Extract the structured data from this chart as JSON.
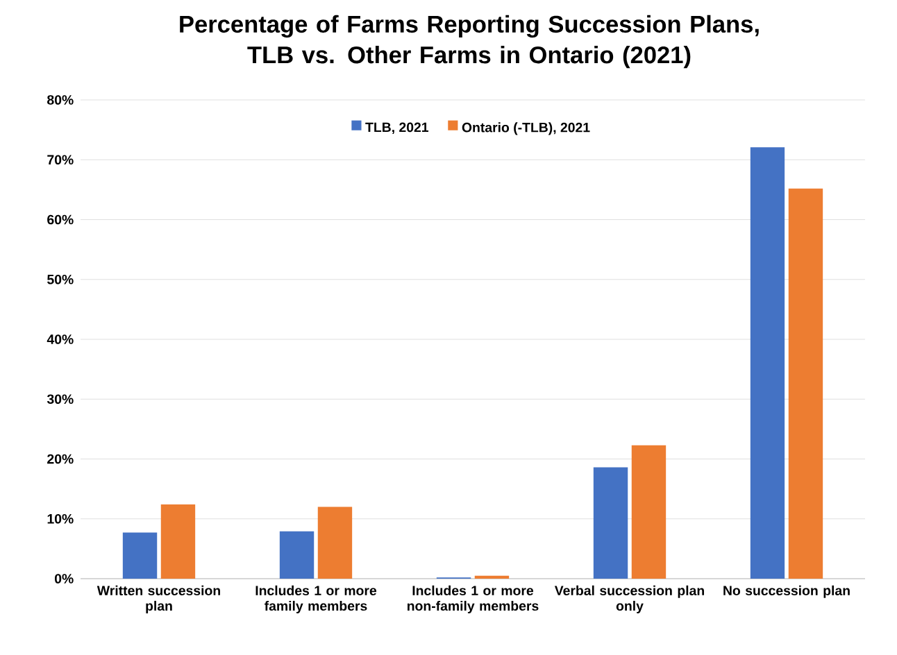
{
  "chart_data": {
    "type": "bar",
    "title": "Percentage of Farms Reporting Succession Plans,\nTLB vs. Other Farms in Ontario (2021)",
    "categories": [
      "Written succession\nplan",
      "Includes 1 or more\nfamily members",
      "Includes 1 or more\nnon-family members",
      "Verbal succession plan\nonly",
      "No succession plan"
    ],
    "series": [
      {
        "name": "TLB, 2021",
        "color": "#4472c4",
        "values": [
          7.7,
          7.9,
          0.2,
          18.6,
          72.1
        ]
      },
      {
        "name": "Ontario (-TLB), 2021",
        "color": "#ed7d31",
        "values": [
          12.4,
          12.0,
          0.5,
          22.3,
          65.2
        ]
      }
    ],
    "ylim": [
      0,
      80
    ],
    "yticks": [
      {
        "value": 0,
        "label": "0%"
      },
      {
        "value": 10,
        "label": "10%"
      },
      {
        "value": 20,
        "label": "20%"
      },
      {
        "value": 30,
        "label": "30%"
      },
      {
        "value": 40,
        "label": "40%"
      },
      {
        "value": 50,
        "label": "50%"
      },
      {
        "value": 60,
        "label": "60%"
      },
      {
        "value": 70,
        "label": "70%"
      },
      {
        "value": 80,
        "label": "80%"
      }
    ],
    "grid": "y",
    "legend": "top"
  }
}
